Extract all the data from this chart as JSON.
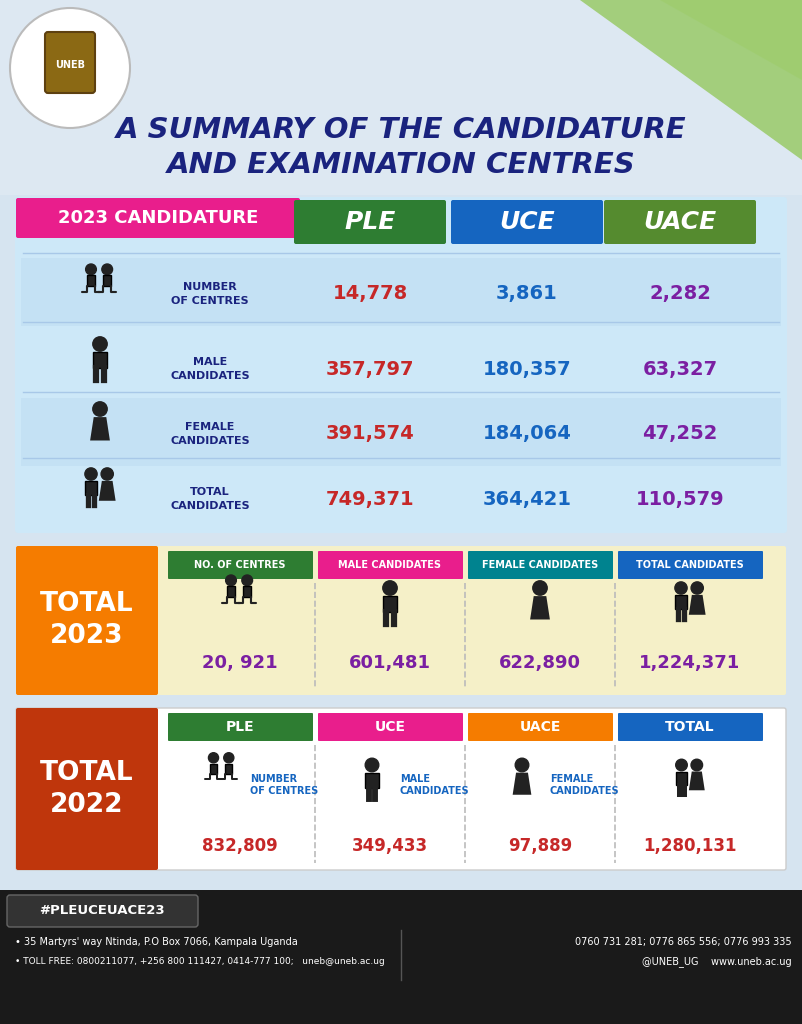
{
  "title_line1": "A SUMMARY OF THE CANDIDATURE",
  "title_line2": "AND EXAMINATION CENTRES",
  "title_color": "#1a237e",
  "bg_color": "#d6e4f0",
  "section2023_label": "2023 CANDIDATURE",
  "section2023_label_bg": "#e91e8c",
  "table_bg": "#cde8f8",
  "col_headers": [
    "PLE",
    "UCE",
    "UACE"
  ],
  "col_header_colors": [
    "#2e7d32",
    "#1565c0",
    "#558b2f"
  ],
  "row_labels": [
    "NUMBER\nOF CENTRES",
    "MALE\nCANDIDATES",
    "FEMALE\nCANDIDATES",
    "TOTAL\nCANDIDATES"
  ],
  "ple_values": [
    "14,778",
    "357,797",
    "391,574",
    "749,371"
  ],
  "uce_values": [
    "3,861",
    "180,357",
    "184,064",
    "364,421"
  ],
  "uace_values": [
    "2,282",
    "63,327",
    "47,252",
    "110,579"
  ],
  "ple_color": "#c62828",
  "uce_color": "#1565c0",
  "uace_color": "#7b1fa2",
  "total2023_bg": "#f57c00",
  "total2023_section_bg": "#f5f0c8",
  "total2023_col_headers": [
    "NO. OF CENTRES",
    "MALE CANDIDATES",
    "FEMALE CANDIDATES",
    "TOTAL CANDIDATES"
  ],
  "total2023_col_header_colors": [
    "#2e7d32",
    "#e91e8c",
    "#00838f",
    "#1565c0"
  ],
  "total2023_values": [
    "20, 921",
    "601,481",
    "622,890",
    "1,224,371"
  ],
  "total2023_value_color": "#7b1fa2",
  "total2022_bg": "#bf360c",
  "total2022_col_headers": [
    "PLE",
    "UCE",
    "UACE",
    "TOTAL"
  ],
  "total2022_col_header_colors": [
    "#2e7d32",
    "#e91e8c",
    "#f57c00",
    "#1565c0"
  ],
  "total2022_sub_labels": [
    "NUMBER\nOF CENTRES",
    "MALE\nCANDIDATES",
    "FEMALE\nCANDIDATES",
    ""
  ],
  "total2022_values": [
    "832,809",
    "349,433",
    "97,889",
    "1,280,131"
  ],
  "total2022_value_color": "#c62828",
  "footer_bg": "#1a1a1a",
  "footer_hashtag": "#PLEUCEUACE23",
  "footer_address": "35 Martyrs' way Ntinda, P.O Box 7066, Kampala Uganda",
  "footer_tollfree": "TOLL FREE: 0800211077, +256 800 111427, 0414-777 100;   uneb@uneb.ac.ug",
  "footer_phone": "0760 731 281; 0776 865 556; 0776 993 335",
  "footer_social": "@UNEB_UG    www.uneb.ac.ug"
}
